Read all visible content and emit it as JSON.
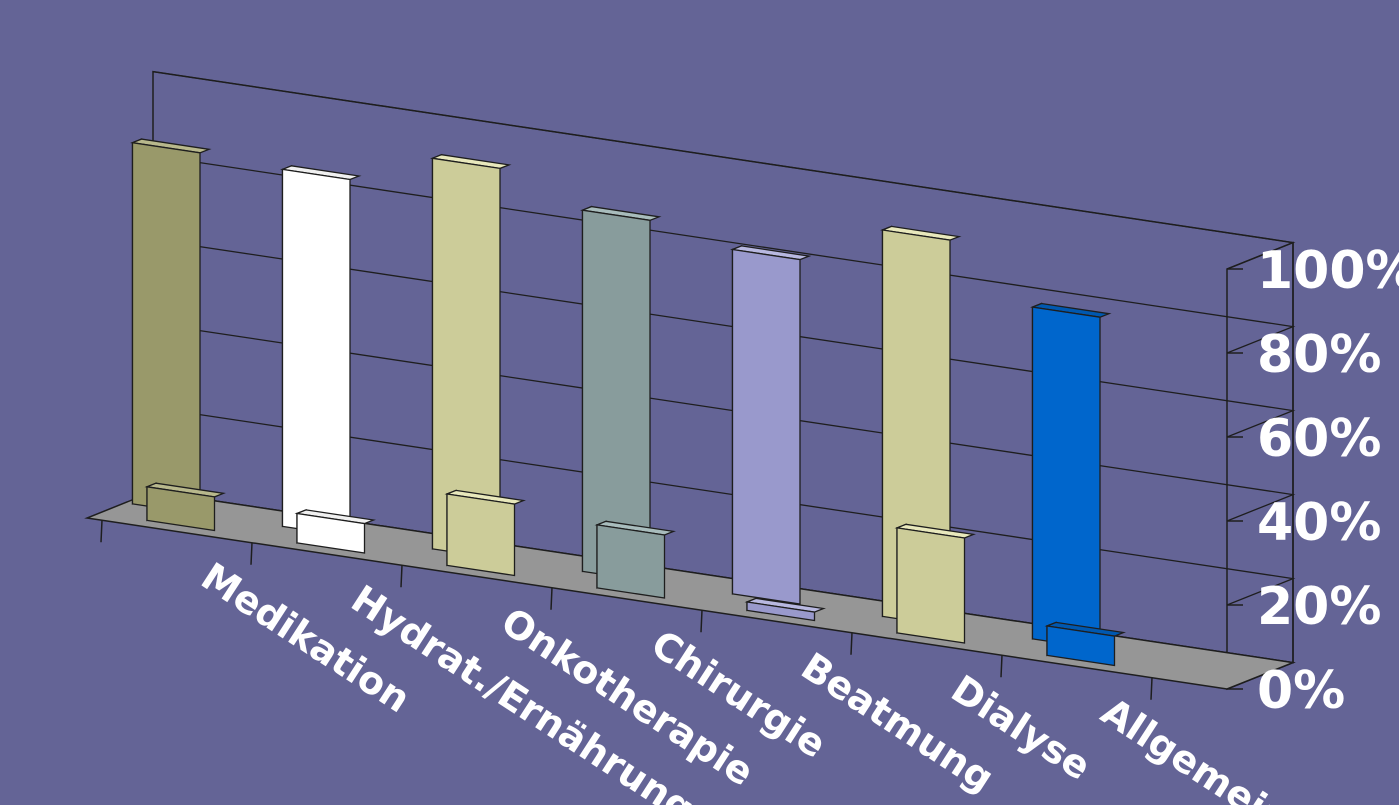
{
  "chart_data": {
    "type": "bar",
    "categories": [
      "Medikation",
      "Hydrat./Ernährung",
      "Onkotherapie",
      "Chirurgie",
      "Beatmung",
      "Dialyse",
      "Allgemein"
    ],
    "series": [
      {
        "values": [
          86,
          85,
          93,
          86,
          82,
          92,
          79
        ]
      },
      {
        "values": [
          8,
          7,
          17,
          15,
          2,
          25,
          7
        ]
      }
    ],
    "colors": {
      "front": [
        "#99996A",
        "#FFFFFF",
        "#CCCC99",
        "#889C9C",
        "#9999CC",
        "#CCCC99",
        "#0066CC"
      ],
      "side": [
        "#757550",
        "#C8C8C8",
        "#9C9C74",
        "#687878",
        "#7474A0",
        "#9C9C74",
        "#004A99"
      ],
      "top": [
        "#B8B88C",
        "#F0F0F0",
        "#E8E8BC",
        "#A8BCBC",
        "#B8B8E0",
        "#E8E8BC",
        "#0058B0"
      ]
    },
    "y_ticks": [
      "0%",
      "20%",
      "40%",
      "60%",
      "80%",
      "100%"
    ],
    "ylim": [
      0,
      100
    ],
    "grid": true,
    "floor_color": "#969696",
    "line_color": "#1e1e1e",
    "background": "#646496"
  }
}
